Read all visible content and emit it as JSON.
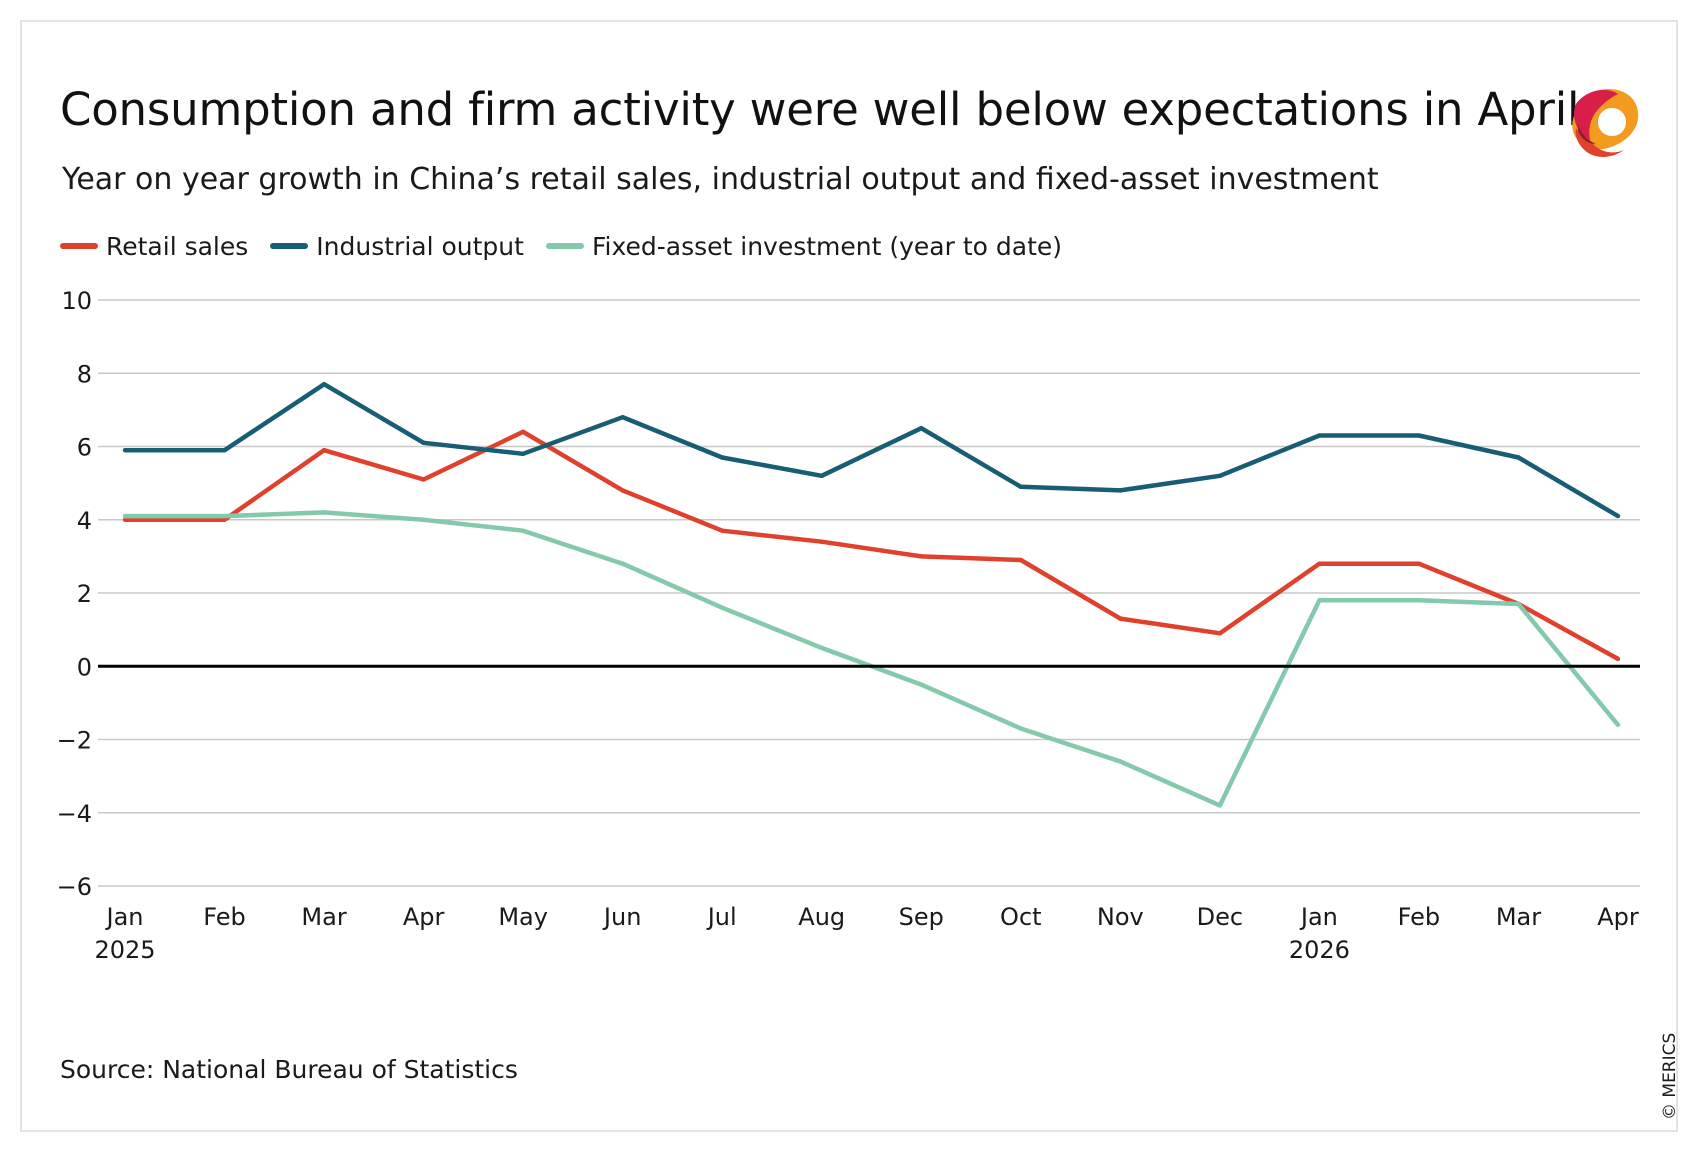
{
  "title": "Consumption and firm activity were well below expectations in April",
  "subtitle": "Year on year growth in China’s retail sales, industrial output and fixed-asset investment",
  "source": "Source: National Bureau of Statistics",
  "copyright": "© MERICS",
  "chart_data": {
    "type": "line",
    "x": [
      "Jan",
      "Feb",
      "Mar",
      "Apr",
      "May",
      "Jun",
      "Jul",
      "Aug",
      "Sep",
      "Oct",
      "Nov",
      "Dec",
      "Jan",
      "Feb",
      "Mar",
      "Apr"
    ],
    "x_year_labels": [
      {
        "index": 0,
        "label": "2025"
      },
      {
        "index": 12,
        "label": "2026"
      }
    ],
    "ylim": [
      -6,
      10
    ],
    "yticks": [
      10,
      8,
      6,
      4,
      2,
      0,
      -2,
      -4,
      -6
    ],
    "ytick_labels": [
      "10",
      "8",
      "6",
      "4",
      "2",
      "0",
      "−2",
      "−4",
      "−6"
    ],
    "grid": true,
    "zero_line": true,
    "legend_position": "top-left",
    "series": [
      {
        "name": "Retail sales",
        "color": "#e0412d",
        "values": [
          4.0,
          4.0,
          5.9,
          5.1,
          6.4,
          4.8,
          3.7,
          3.4,
          3.0,
          2.9,
          1.3,
          0.9,
          2.8,
          2.8,
          1.7,
          0.2
        ]
      },
      {
        "name": "Industrial output",
        "color": "#175e74",
        "values": [
          5.9,
          5.9,
          7.7,
          6.1,
          5.8,
          6.8,
          5.7,
          5.2,
          6.5,
          4.9,
          4.8,
          5.2,
          6.3,
          6.3,
          5.7,
          4.1
        ]
      },
      {
        "name": "Fixed-asset investment (year to date)",
        "color": "#83c9ab",
        "values": [
          4.1,
          4.1,
          4.2,
          4.0,
          3.7,
          2.8,
          1.6,
          0.5,
          -0.5,
          -1.7,
          -2.6,
          -3.8,
          1.8,
          1.8,
          1.7,
          -1.6
        ]
      }
    ]
  }
}
